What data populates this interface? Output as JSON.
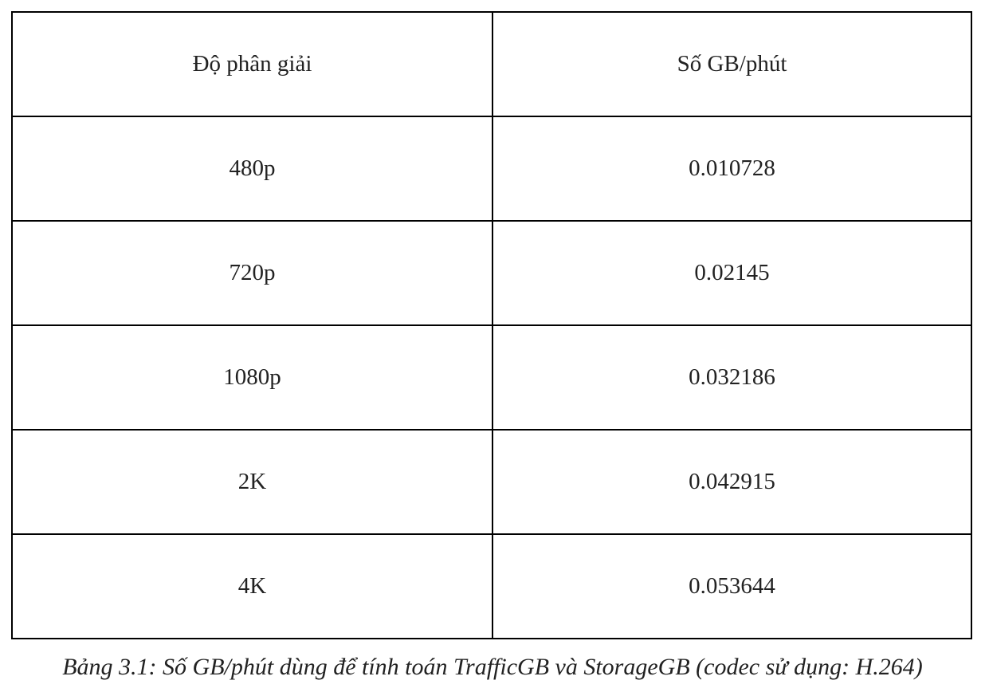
{
  "table": {
    "headers": [
      "Độ phân giải",
      "Số GB/phút"
    ],
    "rows": [
      [
        "480p",
        "0.010728"
      ],
      [
        "720p",
        "0.02145"
      ],
      [
        "1080p",
        "0.032186"
      ],
      [
        "2K",
        "0.042915"
      ],
      [
        "4K",
        "0.053644"
      ]
    ]
  },
  "caption": "Bảng 3.1: Số GB/phút dùng để tính toán TrafficGB và StorageGB (codec sử dụng: H.264)"
}
